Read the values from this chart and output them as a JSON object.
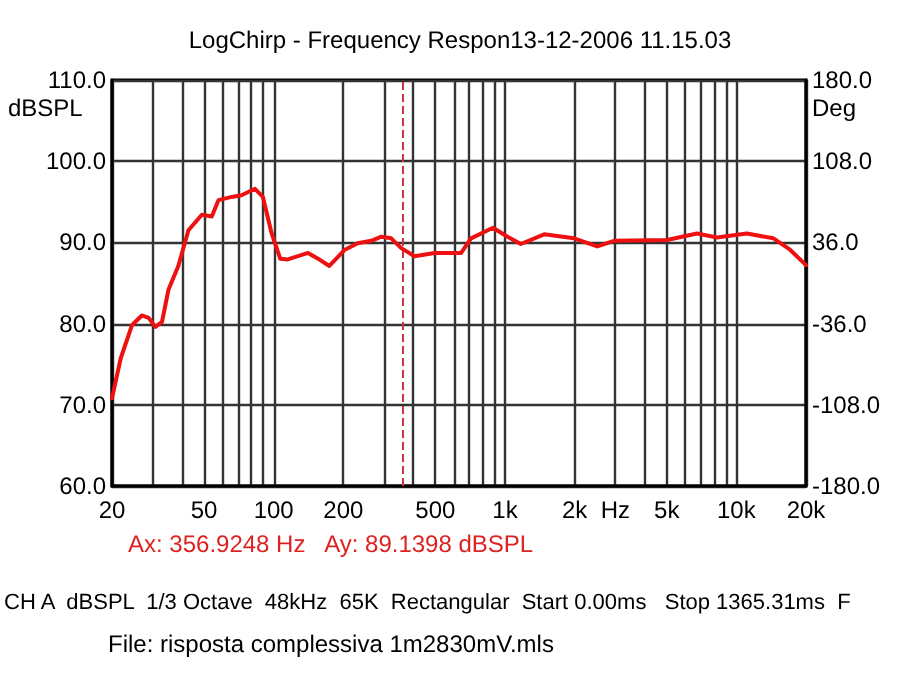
{
  "chart_data": {
    "type": "line",
    "title": "LogChirp - Frequency Respon13-12-2006 11.15.03",
    "ylabel": "dBSPL",
    "y2label": "Deg",
    "annotations": [
      "Ax: 356.9248 Hz   Ay: 89.1398 dBSPL",
      "CH A  dBSPL  1/3 Octave  48kHz  65K  Rectangular  Start 0.00ms   Stop 1365.31ms  F",
      "File: risposta complessiva 1m2830mV.mls"
    ],
    "x": [
      20,
      21.8,
      24.4,
      26.9,
      28.8,
      30.8,
      32.9,
      35.1,
      38.7,
      42.8,
      48.9,
      54,
      57.7,
      65.8,
      72.6,
      83,
      89.8,
      98,
      106.7,
      115,
      140.7,
      155.5,
      174,
      203,
      231,
      264,
      292,
      322,
      356,
      406,
      496,
      646,
      713,
      887,
      1025,
      1170,
      1476,
      1987,
      2505,
      2958,
      5015,
      6760,
      8244,
      11093,
      14460,
      17060,
      20000
    ],
    "series": [
      {
        "color": "#ee1111",
        "values": [
          70.8,
          75.7,
          79.8,
          81.0,
          80.7,
          79.6,
          80.2,
          84.2,
          87.1,
          91.5,
          93.4,
          93.2,
          95.2,
          95.6,
          95.8,
          96.6,
          95.6,
          91.1,
          88.0,
          87.9,
          88.7,
          88.0,
          87.1,
          89.1,
          89.9,
          90.2,
          90.7,
          90.5,
          89.3,
          88.3,
          88.7,
          88.7,
          90.5,
          91.8,
          90.7,
          89.8,
          91.0,
          90.5,
          89.5,
          90.2,
          90.3,
          91.1,
          90.6,
          91.1,
          90.5,
          89.1,
          87.2
        ]
      }
    ],
    "log": "x",
    "xlim": [
      20,
      20000
    ],
    "xticks": [
      20,
      {
        "value": 30,
        "label": null
      },
      {
        "value": 40,
        "label": null
      },
      50,
      {
        "value": 60,
        "label": null
      },
      {
        "value": 70,
        "label": null
      },
      {
        "value": 80,
        "label": null
      },
      {
        "value": 90,
        "label": null
      },
      100,
      200,
      {
        "value": 300,
        "label": null
      },
      {
        "value": 400,
        "label": null
      },
      500,
      {
        "value": 600,
        "label": null
      },
      {
        "value": 700,
        "label": null
      },
      {
        "value": 800,
        "label": null
      },
      {
        "value": 900,
        "label": null
      },
      {
        "value": 1000,
        "label": "1k"
      },
      {
        "value": 2000,
        "label": "2k"
      },
      {
        "value": 3000,
        "label": "Hz"
      },
      {
        "value": 4000,
        "label": null
      },
      {
        "value": 5000,
        "label": "5k"
      },
      {
        "value": 6000,
        "label": null
      },
      {
        "value": 7000,
        "label": null
      },
      {
        "value": 8000,
        "label": null
      },
      {
        "value": 9000,
        "label": null
      },
      {
        "value": 10000,
        "label": "10k"
      },
      {
        "value": 20000,
        "label": "20k"
      }
    ],
    "ylim": [
      60,
      110
    ],
    "yticks": [
      {
        "value": 60,
        "label": "60.0"
      },
      {
        "value": 70,
        "label": "70.0"
      },
      {
        "value": 80,
        "label": "80.0"
      },
      {
        "value": 90,
        "label": "90.0"
      },
      {
        "value": 100,
        "label": "100.0"
      },
      {
        "value": 110,
        "label": "110.0"
      }
    ],
    "y2lim": [
      -180,
      180
    ],
    "y2ticks": [
      {
        "value": -180,
        "label": "-180.0"
      },
      {
        "value": -108,
        "label": "-108.0"
      },
      {
        "value": -36,
        "label": "-36.0"
      },
      {
        "value": 36,
        "label": "36.0"
      },
      {
        "value": 108,
        "label": "108.0"
      },
      {
        "value": 180,
        "label": "180.0"
      }
    ],
    "ref_lines": [
      {
        "axis": "x",
        "value": 356.9248,
        "color": "#cc3344",
        "line_style": "dashed"
      }
    ],
    "grid": true,
    "marker": "none",
    "line_style": "solid"
  }
}
